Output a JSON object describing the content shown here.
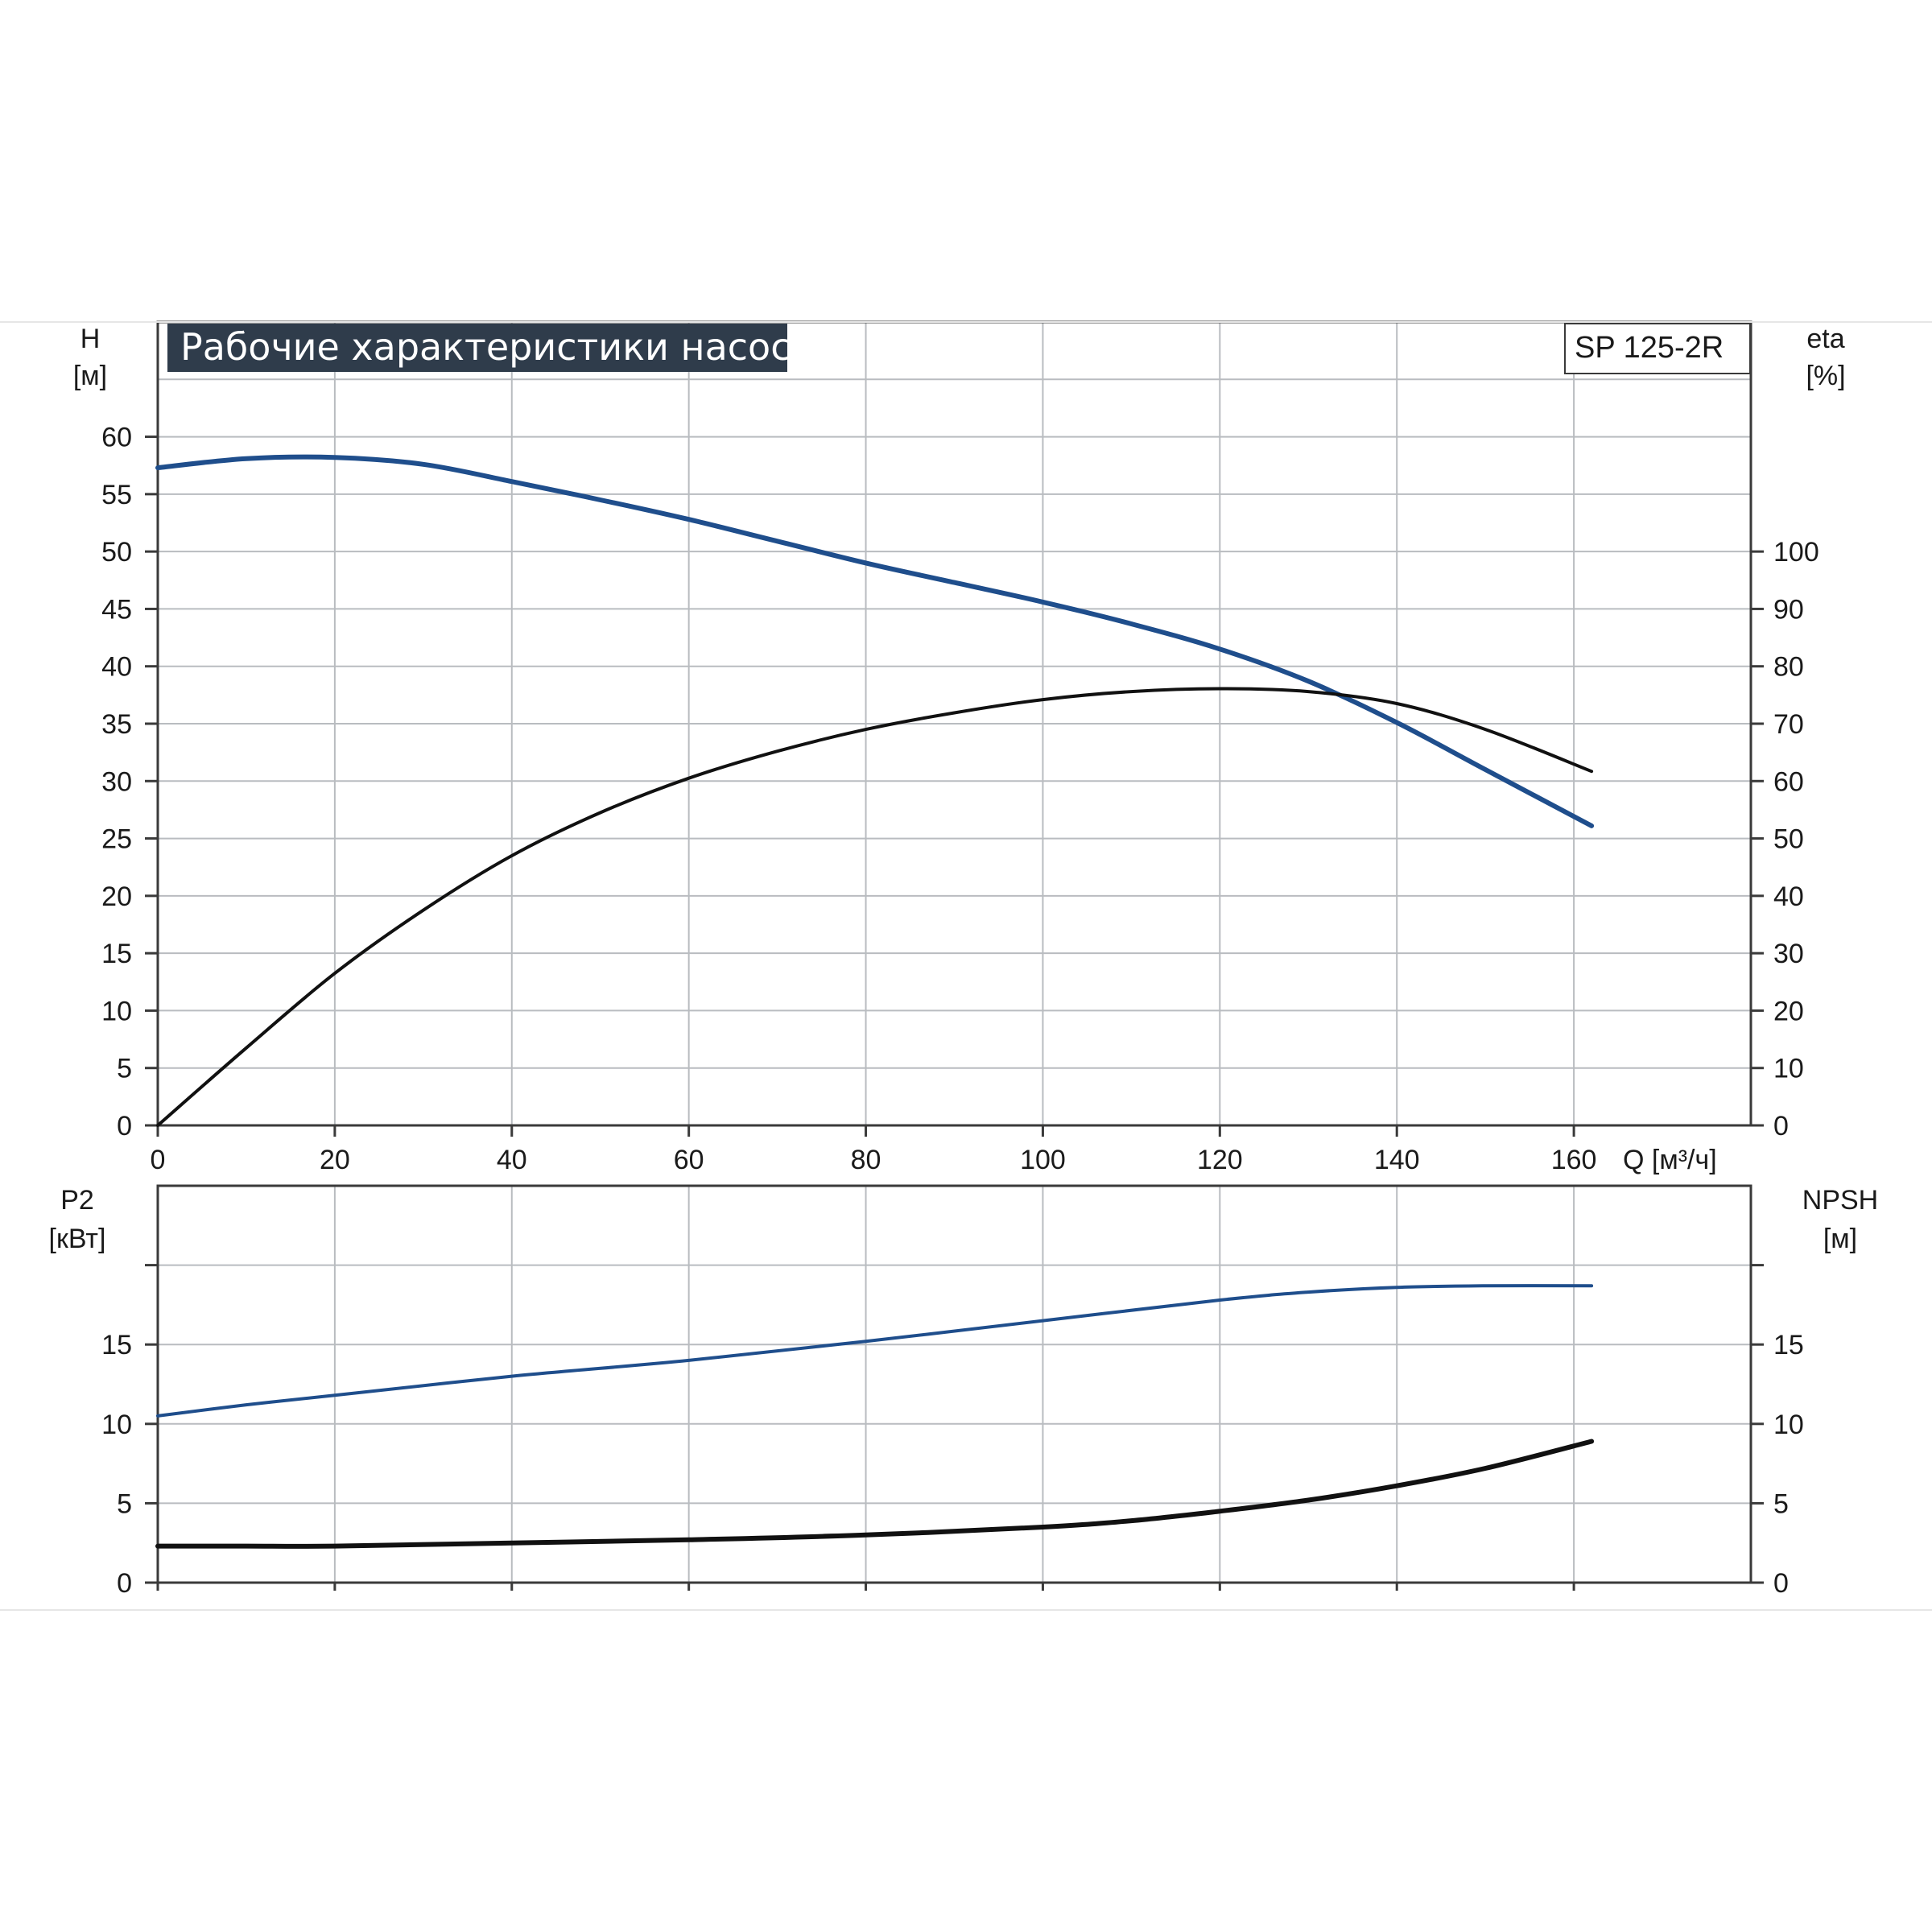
{
  "title": "Рабочие характеристики насоса",
  "model": "SP 125-2R",
  "chart_data": [
    {
      "type": "line",
      "axes": {
        "x": {
          "label": "Q [м³/ч]",
          "range": [
            0,
            180
          ],
          "ticks": [
            0,
            20,
            40,
            60,
            80,
            100,
            120,
            140,
            160
          ],
          "tick_labels": [
            "0",
            "20",
            "40",
            "60",
            "80",
            "100",
            "120",
            "140",
            "160"
          ]
        },
        "y_left": {
          "label_line1": "H",
          "label_line2": "[м]",
          "range": [
            0,
            70
          ],
          "ticks": [
            0,
            5,
            10,
            15,
            20,
            25,
            30,
            35,
            40,
            45,
            50,
            55,
            60
          ],
          "tick_labels": [
            "0",
            "5",
            "10",
            "15",
            "20",
            "25",
            "30",
            "35",
            "40",
            "45",
            "50",
            "55",
            "60"
          ]
        },
        "y_right": {
          "label_line1": "eta",
          "label_line2": "[%]",
          "range": [
            0,
            140
          ],
          "ticks": [
            0,
            10,
            20,
            30,
            40,
            50,
            60,
            70,
            80,
            90,
            100
          ],
          "tick_labels": [
            "0",
            "10",
            "20",
            "30",
            "40",
            "50",
            "60",
            "70",
            "80",
            "90",
            "100"
          ]
        }
      },
      "grid": true,
      "series": [
        {
          "key": "head",
          "axis": "left",
          "color": "#1f4e8c",
          "x": [
            0,
            10,
            20,
            30,
            40,
            50,
            60,
            70,
            80,
            90,
            100,
            110,
            120,
            130,
            140,
            150,
            162
          ],
          "y": [
            57.3,
            58.1,
            58.2,
            57.6,
            56.1,
            54.5,
            52.8,
            50.9,
            49.0,
            47.3,
            45.6,
            43.7,
            41.5,
            38.7,
            35.1,
            31.0,
            26.1
          ],
          "values_from_thin": 0
        },
        {
          "key": "efficiency",
          "axis": "right",
          "color": "#111111",
          "x": [
            0,
            10,
            20,
            30,
            40,
            50,
            60,
            70,
            80,
            90,
            100,
            110,
            120,
            130,
            140,
            150,
            162
          ],
          "y": [
            0,
            13.5,
            26.5,
            37.5,
            47.0,
            54.5,
            60.5,
            65.2,
            69.0,
            71.9,
            74.2,
            75.6,
            76.1,
            75.6,
            73.5,
            69.0,
            61.7
          ]
        }
      ]
    },
    {
      "type": "line",
      "axes": {
        "x": {
          "range": [
            0,
            180
          ],
          "ticks": [
            0,
            20,
            40,
            60,
            80,
            100,
            120,
            140,
            160
          ]
        },
        "y_left": {
          "label_line1": "P2",
          "label_line2": "[кВт]",
          "range": [
            0,
            25
          ],
          "ticks": [
            0,
            5,
            10,
            15
          ],
          "tick_labels": [
            "0",
            "5",
            "10",
            "15"
          ]
        },
        "y_right": {
          "label_line1": "NPSH",
          "label_line2": "[м]",
          "range": [
            0,
            25
          ],
          "ticks": [
            0,
            5,
            10,
            15
          ],
          "tick_labels": [
            "0",
            "5",
            "10",
            "15"
          ]
        }
      },
      "grid": true,
      "series": [
        {
          "key": "power",
          "axis": "left",
          "color": "#1f4e8c",
          "x": [
            0,
            10,
            20,
            40,
            60,
            80,
            100,
            120,
            130,
            140,
            150,
            162
          ],
          "y": [
            10.5,
            11.2,
            11.8,
            13.0,
            14.0,
            15.2,
            16.5,
            17.8,
            18.3,
            18.6,
            18.7,
            18.7
          ]
        },
        {
          "key": "npsh",
          "axis": "right",
          "color": "#111111",
          "x": [
            0,
            10,
            20,
            40,
            60,
            80,
            100,
            110,
            120,
            130,
            140,
            150,
            162
          ],
          "y": [
            2.3,
            2.3,
            2.3,
            2.5,
            2.7,
            3.0,
            3.5,
            3.9,
            4.5,
            5.2,
            6.1,
            7.2,
            8.9
          ]
        }
      ]
    }
  ],
  "colors": {
    "curve_blue": "#1f4e8c",
    "curve_black": "#111111",
    "title_bg": "#2f3c4b",
    "grid": "#b9bcc0"
  }
}
